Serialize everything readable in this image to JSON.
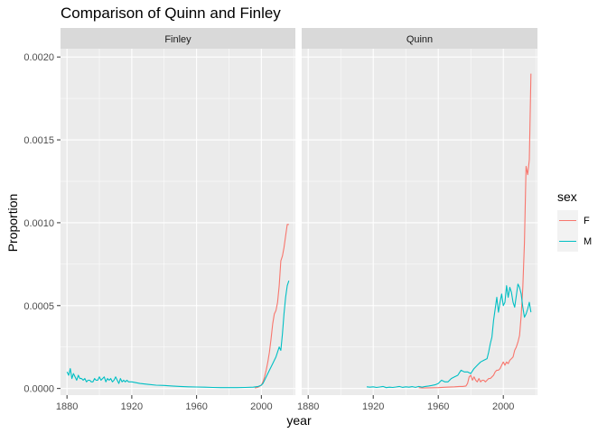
{
  "chart_data": {
    "type": "line",
    "title": "Comparison of Quinn and Finley",
    "xlabel": "year",
    "ylabel": "Proportion",
    "xlim": [
      1876,
      2021
    ],
    "ylim": [
      -4e-05,
      0.00205
    ],
    "x_ticks": [
      1880,
      1920,
      1960,
      2000
    ],
    "y_ticks": [
      {
        "value": 0.0,
        "label": "0.0000"
      },
      {
        "value": 0.0005,
        "label": "0.0005"
      },
      {
        "value": 0.001,
        "label": "0.0010"
      },
      {
        "value": 0.0015,
        "label": "0.0015"
      },
      {
        "value": 0.002,
        "label": "0.0020"
      }
    ],
    "grid": true,
    "legend": {
      "title": "sex",
      "position": "right",
      "entries": [
        {
          "label": "F",
          "color": "#F8766D"
        },
        {
          "label": "M",
          "color": "#00BFC4"
        }
      ]
    },
    "panels": [
      {
        "name": "Finley",
        "series": [
          {
            "name": "F",
            "color": "#F8766D",
            "x": [
              1996,
              1998,
              2000,
              2001,
              2002,
              2003,
              2004,
              2005,
              2006,
              2007,
              2008,
              2009,
              2010,
              2011,
              2012,
              2013,
              2014,
              2015,
              2016,
              2017
            ],
            "y": [
              3e-06,
              8e-06,
              2e-05,
              4e-05,
              7e-05,
              0.00011,
              0.00016,
              0.00022,
              0.0003,
              0.00039,
              0.00045,
              0.00047,
              0.00052,
              0.00062,
              0.00077,
              0.0008,
              0.00085,
              0.00092,
              0.00099,
              0.00099
            ]
          },
          {
            "name": "M",
            "color": "#00BFC4",
            "x": [
              1880,
              1881,
              1882,
              1883,
              1884,
              1885,
              1886,
              1887,
              1888,
              1889,
              1890,
              1891,
              1892,
              1893,
              1894,
              1895,
              1896,
              1897,
              1898,
              1899,
              1900,
              1901,
              1902,
              1903,
              1904,
              1905,
              1906,
              1907,
              1908,
              1909,
              1910,
              1911,
              1912,
              1913,
              1914,
              1915,
              1916,
              1917,
              1918,
              1919,
              1920,
              1925,
              1930,
              1935,
              1940,
              1945,
              1950,
              1955,
              1960,
              1965,
              1970,
              1975,
              1980,
              1985,
              1990,
              1995,
              1998,
              2000,
              2001,
              2002,
              2003,
              2004,
              2005,
              2006,
              2007,
              2008,
              2009,
              2010,
              2011,
              2012,
              2013,
              2014,
              2015,
              2016,
              2017
            ],
            "y": [
              0.0001,
              8e-05,
              0.00012,
              6e-05,
              9e-05,
              7e-05,
              5e-05,
              8e-05,
              6e-05,
              6e-05,
              5e-05,
              6e-05,
              4e-05,
              5e-05,
              5e-05,
              4e-05,
              4e-05,
              6e-05,
              5e-05,
              5e-05,
              7e-05,
              5e-05,
              6e-05,
              7e-05,
              4e-05,
              6e-05,
              5e-05,
              6e-05,
              4e-05,
              5e-05,
              7e-05,
              5e-05,
              3e-05,
              6e-05,
              4e-05,
              5e-05,
              4e-05,
              5e-05,
              4e-05,
              4e-05,
              4e-05,
              3e-05,
              2.5e-05,
              2e-05,
              1.8e-05,
              1.5e-05,
              1.2e-05,
              1e-05,
              9e-06,
              8e-06,
              6e-06,
              5e-06,
              5e-06,
              5e-06,
              6e-06,
              8e-06,
              1.2e-05,
              2e-05,
              3e-05,
              5e-05,
              7e-05,
              9e-05,
              0.00011,
              0.00013,
              0.00015,
              0.00017,
              0.00019,
              0.00022,
              0.00025,
              0.00023,
              0.00033,
              0.00045,
              0.00055,
              0.00062,
              0.00065
            ]
          }
        ]
      },
      {
        "name": "Quinn",
        "series": [
          {
            "name": "F",
            "color": "#F8766D",
            "x": [
              1948,
              1950,
              1955,
              1960,
              1965,
              1970,
              1973,
              1975,
              1977,
              1978,
              1979,
              1980,
              1981,
              1982,
              1983,
              1984,
              1985,
              1986,
              1987,
              1988,
              1989,
              1990,
              1991,
              1992,
              1993,
              1994,
              1995,
              1996,
              1997,
              1998,
              1999,
              2000,
              2001,
              2002,
              2003,
              2004,
              2005,
              2006,
              2007,
              2008,
              2009,
              2010,
              2011,
              2012,
              2013,
              2014,
              2015,
              2016,
              2017
            ],
            "y": [
              5e-06,
              3e-06,
              4e-06,
              5e-06,
              8e-06,
              1e-05,
              1.2e-05,
              1.2e-05,
              1.5e-05,
              3e-05,
              7e-05,
              8e-05,
              5e-05,
              7e-05,
              5e-05,
              4e-05,
              6e-05,
              4e-05,
              5e-05,
              5e-05,
              4e-05,
              5e-05,
              6e-05,
              6e-05,
              7e-05,
              8e-05,
              0.0001,
              0.00011,
              0.00011,
              0.00012,
              0.00014,
              0.00016,
              0.00014,
              0.00016,
              0.00015,
              0.00017,
              0.00018,
              0.00019,
              0.00023,
              0.00025,
              0.00028,
              0.00032,
              0.00044,
              0.00061,
              0.00088,
              0.00134,
              0.00129,
              0.00138,
              0.0019
            ]
          },
          {
            "name": "M",
            "color": "#00BFC4",
            "x": [
              1916,
              1918,
              1920,
              1922,
              1924,
              1926,
              1928,
              1930,
              1932,
              1934,
              1936,
              1938,
              1940,
              1942,
              1944,
              1946,
              1948,
              1950,
              1952,
              1954,
              1956,
              1958,
              1960,
              1962,
              1964,
              1966,
              1968,
              1970,
              1972,
              1974,
              1976,
              1978,
              1980,
              1982,
              1984,
              1986,
              1988,
              1990,
              1991,
              1992,
              1993,
              1994,
              1995,
              1996,
              1997,
              1998,
              1999,
              2000,
              2001,
              2002,
              2003,
              2004,
              2005,
              2006,
              2007,
              2008,
              2009,
              2010,
              2011,
              2012,
              2013,
              2014,
              2015,
              2016,
              2017
            ],
            "y": [
              1e-05,
              8e-06,
              1e-05,
              6e-06,
              9e-06,
              1.2e-05,
              5e-06,
              8e-06,
              6e-06,
              9e-06,
              1.2e-05,
              7e-06,
              1e-05,
              8e-06,
              1.1e-05,
              7e-06,
              1.2e-05,
              8e-06,
              1.2e-05,
              1.5e-05,
              1.8e-05,
              2.2e-05,
              3e-05,
              5e-05,
              4e-05,
              4e-05,
              6e-05,
              7e-05,
              8e-05,
              0.00011,
              0.0001,
              0.0001,
              9e-05,
              0.00012,
              0.00014,
              0.00016,
              0.00017,
              0.00018,
              0.00022,
              0.00027,
              0.00031,
              0.00041,
              0.00048,
              0.00055,
              0.00046,
              0.00052,
              0.00057,
              0.0005,
              0.00052,
              0.00062,
              0.00055,
              0.00061,
              0.00058,
              0.00052,
              0.00049,
              0.00056,
              0.00063,
              0.00061,
              0.00057,
              0.00049,
              0.00043,
              0.00045,
              0.00048,
              0.00052,
              0.00046
            ]
          }
        ]
      }
    ]
  }
}
